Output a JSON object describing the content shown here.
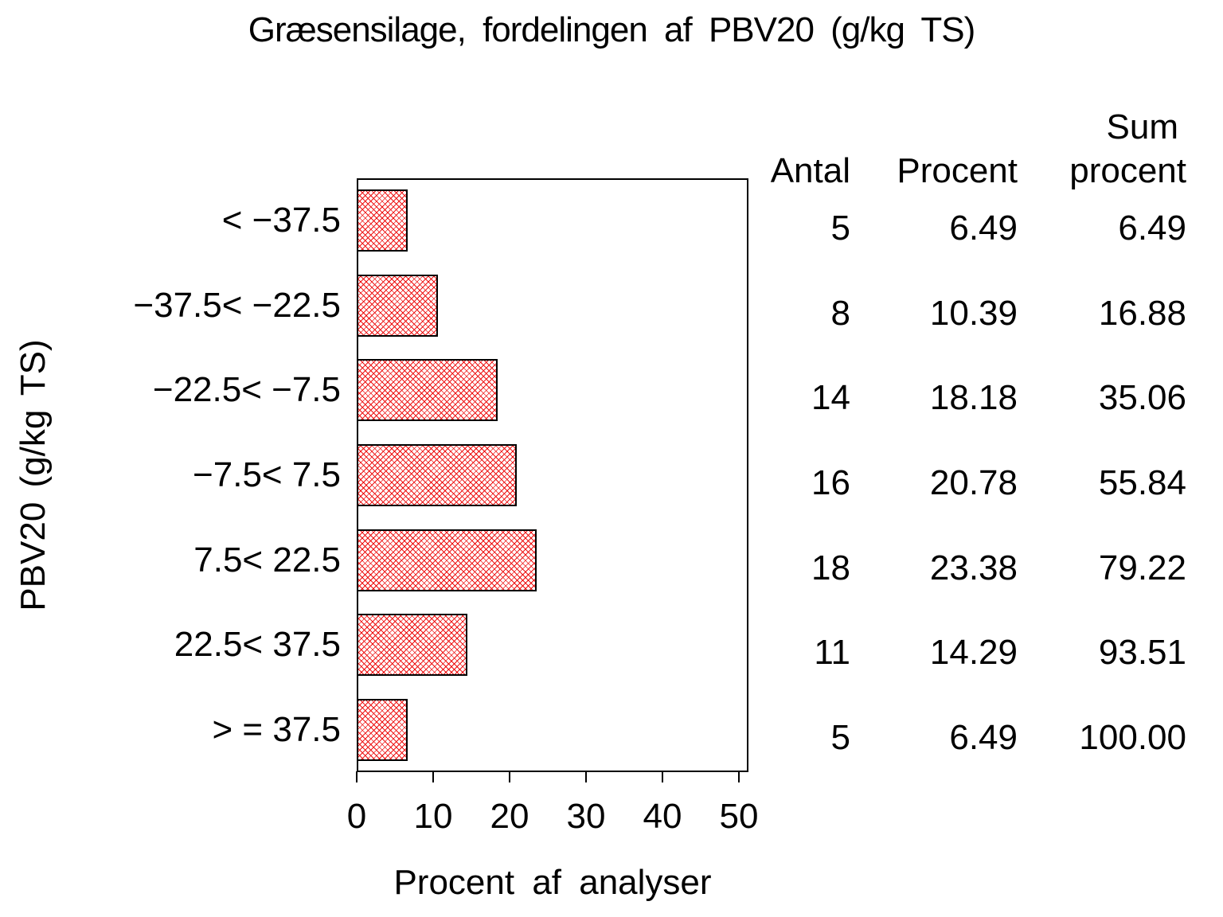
{
  "title": "Græsensilage, fordelingen af PBV20 (g/kg TS)",
  "chart_data": {
    "type": "bar",
    "orientation": "horizontal",
    "title": "Græsensilage, fordelingen af PBV20 (g/kg TS)",
    "xlabel": "Procent af analyser",
    "ylabel": "PBV20 (g/kg TS)",
    "categories": [
      "< −37.5",
      "−37.5< −22.5",
      "−22.5< −7.5",
      "−7.5< 7.5",
      "7.5< 22.5",
      "22.5< 37.5",
      "> = 37.5"
    ],
    "values": [
      6.49,
      10.39,
      18.18,
      20.78,
      23.38,
      14.29,
      6.49
    ],
    "xticks": [
      "0",
      "10",
      "20",
      "30",
      "40",
      "50"
    ],
    "xlim": [
      0,
      51.3
    ],
    "grid": false,
    "legend": "none",
    "bar_color": "#ee1111",
    "bar_fill_style": "diagonal-crosshatch",
    "frame_color": "#000000"
  },
  "table": {
    "headers": {
      "antal": "Antal",
      "procent": "Procent",
      "sum_line1": "Sum",
      "sum_line2": "procent"
    },
    "rows": [
      {
        "antal": "5",
        "procent": "6.49",
        "sum": "6.49"
      },
      {
        "antal": "8",
        "procent": "10.39",
        "sum": "16.88"
      },
      {
        "antal": "14",
        "procent": "18.18",
        "sum": "35.06"
      },
      {
        "antal": "16",
        "procent": "20.78",
        "sum": "55.84"
      },
      {
        "antal": "18",
        "procent": "23.38",
        "sum": "79.22"
      },
      {
        "antal": "11",
        "procent": "14.29",
        "sum": "93.51"
      },
      {
        "antal": "5",
        "procent": "6.49",
        "sum": "100.00"
      }
    ]
  }
}
